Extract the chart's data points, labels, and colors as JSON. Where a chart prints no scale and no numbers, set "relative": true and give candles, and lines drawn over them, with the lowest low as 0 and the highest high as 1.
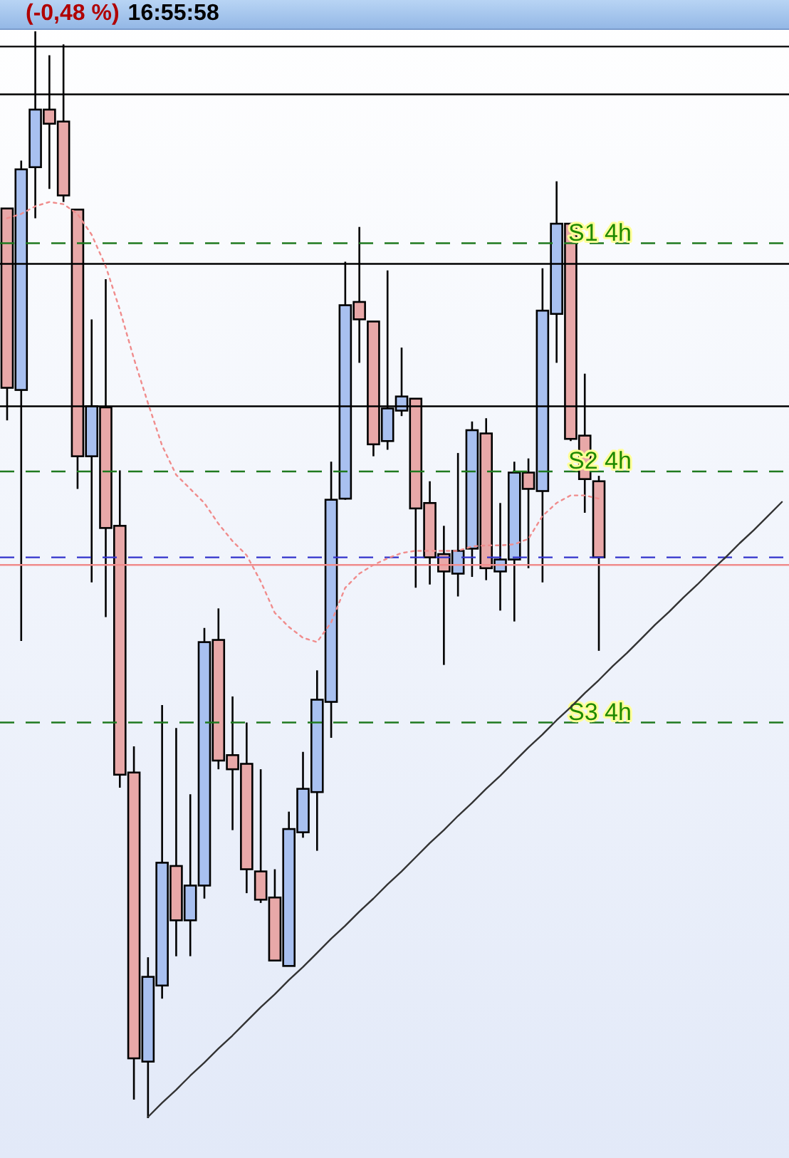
{
  "chart_data": {
    "type": "candlestick",
    "relative": true,
    "tick_labels": false,
    "grid": false,
    "annotations": [
      "(-0,48 %)",
      "16:55:58"
    ],
    "categories": [
      null,
      null,
      null,
      null,
      null,
      null,
      null,
      null,
      null,
      null,
      null,
      null,
      null,
      null,
      null,
      null,
      null,
      null,
      null,
      null,
      null,
      null,
      null,
      null,
      null,
      null,
      null,
      null,
      null,
      null,
      null,
      null,
      null,
      null,
      null,
      null,
      null,
      null,
      null,
      null,
      null,
      null,
      null,
      null,
      null,
      null,
      null,
      null,
      null,
      null,
      null,
      null,
      null,
      null,
      null,
      null
    ],
    "ohlc": [
      [
        0.837,
        0.837,
        0.642,
        0.672
      ],
      [
        0.67,
        0.881,
        0.439,
        0.873
      ],
      [
        0.875,
        1.0,
        0.828,
        0.928
      ],
      [
        0.928,
        0.978,
        0.855,
        0.915
      ],
      [
        0.917,
        0.988,
        0.843,
        0.849
      ],
      [
        0.836,
        0.836,
        0.579,
        0.609
      ],
      [
        0.609,
        0.735,
        0.493,
        0.655
      ],
      [
        0.654,
        0.772,
        0.461,
        0.543
      ],
      [
        0.545,
        0.596,
        0.304,
        0.316
      ],
      [
        0.318,
        0.342,
        0.017,
        0.055
      ],
      [
        0.052,
        0.148,
        0.0,
        0.13
      ],
      [
        0.122,
        0.38,
        0.11,
        0.235
      ],
      [
        0.232,
        0.359,
        0.149,
        0.182
      ],
      [
        0.182,
        0.298,
        0.149,
        0.214
      ],
      [
        0.214,
        0.451,
        0.202,
        0.438
      ],
      [
        0.44,
        0.469,
        0.321,
        0.329
      ],
      [
        0.334,
        0.388,
        0.265,
        0.321
      ],
      [
        0.326,
        0.364,
        0.207,
        0.229
      ],
      [
        0.227,
        0.321,
        0.198,
        0.201
      ],
      [
        0.203,
        0.229,
        0.145,
        0.145
      ],
      [
        0.14,
        0.282,
        0.14,
        0.266
      ],
      [
        0.263,
        0.337,
        0.258,
        0.303
      ],
      [
        0.3,
        0.412,
        0.246,
        0.385
      ],
      [
        0.383,
        0.604,
        0.35,
        0.569
      ],
      [
        0.57,
        0.788,
        0.569,
        0.748
      ],
      [
        0.751,
        0.82,
        0.695,
        0.735
      ],
      [
        0.733,
        0.733,
        0.609,
        0.62
      ],
      [
        0.623,
        0.78,
        0.615,
        0.653
      ],
      [
        0.651,
        0.709,
        0.646,
        0.664
      ],
      [
        0.662,
        0.662,
        0.488,
        0.561
      ],
      [
        0.566,
        0.586,
        0.491,
        0.516
      ],
      [
        0.519,
        0.545,
        0.417,
        0.503
      ],
      [
        0.501,
        0.612,
        0.48,
        0.522
      ],
      [
        0.524,
        0.641,
        0.498,
        0.633
      ],
      [
        0.63,
        0.644,
        0.495,
        0.506
      ],
      [
        0.503,
        0.566,
        0.467,
        0.514
      ],
      [
        0.514,
        0.604,
        0.457,
        0.594
      ],
      [
        0.594,
        0.607,
        0.506,
        0.579
      ],
      [
        0.577,
        0.782,
        0.493,
        0.743
      ],
      [
        0.74,
        0.862,
        0.695,
        0.823
      ],
      [
        0.823,
        0.823,
        0.623,
        0.625
      ],
      [
        0.628,
        0.685,
        0.557,
        0.588
      ],
      [
        0.586,
        0.591,
        0.43,
        0.516
      ],
      null,
      null,
      null,
      null,
      null,
      null,
      null,
      null,
      null,
      null,
      null,
      null,
      null
    ],
    "colors": [
      "#e8a8a8",
      "#a8c0f0",
      "#a8c0f0",
      "#e8a8a8",
      "#e8a8a8",
      "#e8a8a8",
      "#a8c0f0",
      "#e8a8a8",
      "#e8a8a8",
      "#e8a8a8",
      "#a8c0f0",
      "#a8c0f0",
      "#e8a8a8",
      "#a8c0f0",
      "#a8c0f0",
      "#e8a8a8",
      "#e8a8a8",
      "#e8a8a8",
      "#e8a8a8",
      "#e8a8a8",
      "#a8c0f0",
      "#a8c0f0",
      "#a8c0f0",
      "#a8c0f0",
      "#a8c0f0",
      "#e8a8a8",
      "#e8a8a8",
      "#a8c0f0",
      "#a8c0f0",
      "#e8a8a8",
      "#e8a8a8",
      "#e8a8a8",
      "#a8c0f0",
      "#a8c0f0",
      "#e8a8a8",
      "#a8c0f0",
      "#a8c0f0",
      "#e8a8a8",
      "#a8c0f0",
      "#a8c0f0",
      "#e8a8a8",
      "#e8a8a8",
      "#e8a8a8",
      null,
      null,
      null,
      null,
      null,
      null,
      null,
      null,
      null,
      null,
      null,
      null,
      null
    ],
    "series": [
      {
        "type": "line",
        "color": "#f08c8c",
        "line_style": "dotted",
        "values": [
          0.828,
          0.832,
          0.839,
          0.843,
          0.841,
          0.832,
          0.813,
          0.784,
          0.744,
          0.699,
          0.658,
          0.619,
          0.592,
          0.579,
          0.566,
          0.547,
          0.531,
          0.518,
          0.494,
          0.465,
          0.452,
          0.442,
          0.438,
          0.456,
          0.488,
          0.501,
          0.509,
          0.515,
          0.52,
          0.522,
          0.522,
          0.522,
          0.522,
          0.526,
          0.527,
          0.527,
          0.528,
          0.533,
          0.554,
          0.566,
          0.573,
          0.573,
          0.57,
          null,
          null,
          null,
          null,
          null,
          null,
          null,
          null,
          null,
          null,
          null,
          null,
          null
        ]
      },
      {
        "type": "line",
        "color": "#333333",
        "line_style": "solid",
        "values": [
          null,
          null,
          null,
          null,
          null,
          null,
          null,
          null,
          null,
          null,
          0.001,
          0.014,
          0.026,
          0.039,
          0.051,
          0.064,
          0.076,
          0.089,
          0.102,
          0.114,
          0.127,
          0.139,
          0.152,
          0.165,
          0.177,
          0.19,
          0.202,
          0.215,
          0.227,
          0.24,
          0.253,
          0.265,
          0.278,
          0.29,
          0.303,
          0.315,
          0.328,
          0.341,
          0.353,
          0.366,
          0.378,
          0.391,
          0.403,
          0.416,
          0.428,
          0.441,
          0.454,
          0.466,
          0.479,
          0.491,
          0.504,
          0.516,
          0.529,
          0.541,
          0.554,
          0.567
        ]
      }
    ],
    "ref_lines": [
      {
        "axis": "y",
        "value": 0.986,
        "color": "#000000",
        "line_style": "solid"
      },
      {
        "axis": "y",
        "value": 0.942,
        "color": "#000000",
        "line_style": "solid"
      },
      {
        "axis": "y",
        "value": 0.805,
        "label": "S1 4h",
        "color": "#1f7a1f",
        "line_style": "dashed"
      },
      {
        "axis": "y",
        "value": 0.786,
        "color": "#000000",
        "line_style": "solid"
      },
      {
        "axis": "y",
        "value": 0.655,
        "color": "#000000",
        "line_style": "solid"
      },
      {
        "axis": "y",
        "value": 0.595,
        "label": "S2 4h",
        "color": "#1f7a1f",
        "line_style": "dashed"
      },
      {
        "axis": "y",
        "value": 0.516,
        "color": "#3333cc",
        "line_style": "dashed"
      },
      {
        "axis": "y",
        "value": 0.509,
        "color": "#f08c8c",
        "line_style": "solid"
      },
      {
        "axis": "y",
        "value": 0.364,
        "label": "S3 4h",
        "color": "#1f7a1f",
        "line_style": "dashed"
      }
    ]
  }
}
